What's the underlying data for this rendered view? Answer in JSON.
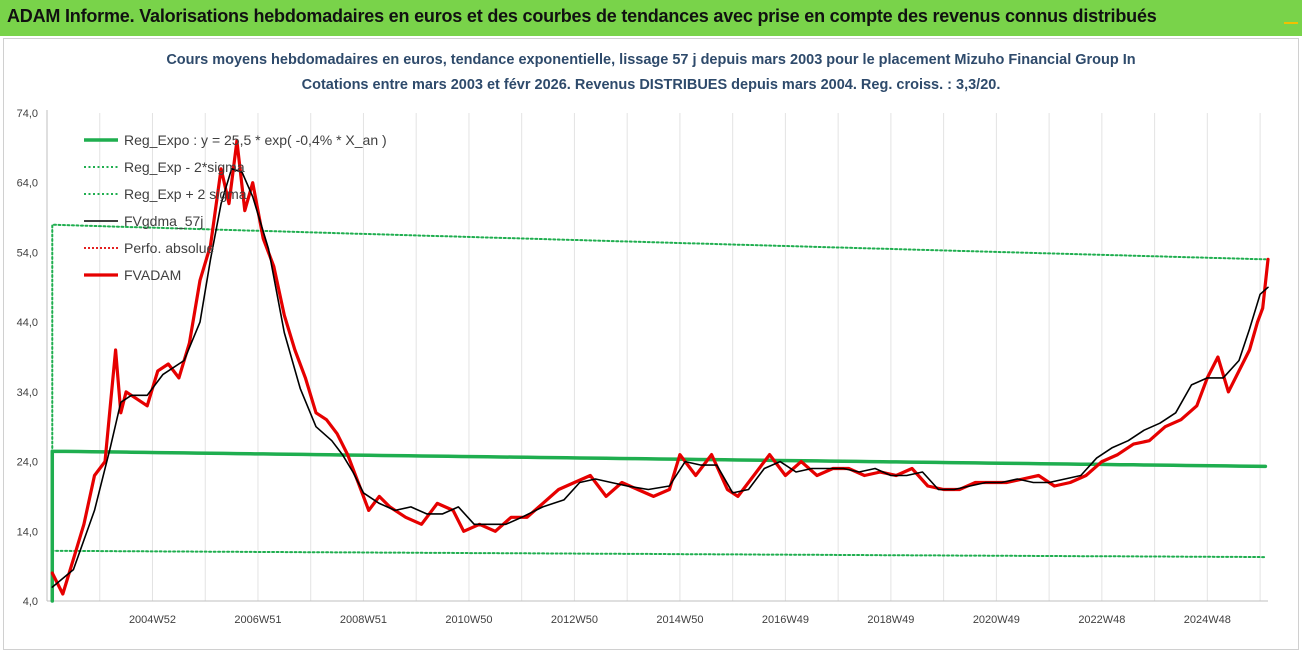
{
  "banner": {
    "title": "ADAM Informe. Valorisations hebdomadaires en euros et des courbes de tendances avec prise en compte des revenus connus distribués"
  },
  "colors": {
    "banner_bg": "#79d34a",
    "reg_expo": "#1fae4f",
    "sigma_bands": "#1fae4f",
    "fvgdma": "#000000",
    "perfo": "#e00000",
    "fvadam": "#e60000"
  },
  "chart_data": {
    "type": "line",
    "title": "Cours moyens hebdomadaires en euros, tendance exponentielle, lissage 57 j depuis mars 2003 pour le placement Mizuho Financial Group In",
    "subtitle": "Cotations entre mars 2003 et févr 2026. Revenus DISTRIBUES depuis mars 2004. Reg. croiss. : 3,3/20.",
    "xlabel": "",
    "ylabel": "",
    "ylim": [
      4,
      74
    ],
    "xlim": [
      2003.0,
      2026.15
    ],
    "y_ticks": [
      "4,0",
      "14,0",
      "24,0",
      "34,0",
      "44,0",
      "54,0",
      "64,0",
      "74,0"
    ],
    "x_ticks": [
      {
        "label": "2004W52",
        "x": 2005.0
      },
      {
        "label": "2006W51",
        "x": 2007.0
      },
      {
        "label": "2008W51",
        "x": 2009.0
      },
      {
        "label": "2010W50",
        "x": 2011.0
      },
      {
        "label": "2012W50",
        "x": 2013.0
      },
      {
        "label": "2014W50",
        "x": 2015.0
      },
      {
        "label": "2016W49",
        "x": 2017.0
      },
      {
        "label": "2018W49",
        "x": 2019.0
      },
      {
        "label": "2020W49",
        "x": 2021.0
      },
      {
        "label": "2022W48",
        "x": 2023.0
      },
      {
        "label": "2024W48",
        "x": 2025.0
      }
    ],
    "grid": "vertical",
    "legend_position": "top-left",
    "series": [
      {
        "name": "Reg_Expo : y = 25,5 * exp( -0,4% *  X_an )",
        "style": "solid-thick",
        "x": [
          2003.0,
          2026.15
        ],
        "y": [
          25.5,
          23.3
        ]
      },
      {
        "name": "Reg_Exp - 2*sigma",
        "style": "dotted",
        "x": [
          2003.0,
          2026.15
        ],
        "y": [
          11.2,
          10.3
        ]
      },
      {
        "name": "Reg_Exp + 2 sigma",
        "style": "dotted",
        "x": [
          2003.0,
          2026.15
        ],
        "y": [
          58.0,
          53.0
        ]
      },
      {
        "name": "FVgdma_57j",
        "style": "solid-thin",
        "x": [
          2003.1,
          2003.5,
          2003.9,
          2004.2,
          2004.4,
          2004.6,
          2004.9,
          2005.2,
          2005.6,
          2005.9,
          2006.1,
          2006.3,
          2006.5,
          2006.7,
          2006.9,
          2007.2,
          2007.5,
          2007.8,
          2008.1,
          2008.4,
          2008.6,
          2008.8,
          2009.0,
          2009.3,
          2009.6,
          2009.9,
          2010.2,
          2010.5,
          2010.8,
          2011.1,
          2011.4,
          2011.7,
          2012.0,
          2012.4,
          2012.8,
          2013.1,
          2013.4,
          2013.7,
          2014.0,
          2014.4,
          2014.8,
          2015.1,
          2015.4,
          2015.7,
          2016.0,
          2016.3,
          2016.6,
          2016.9,
          2017.2,
          2017.5,
          2017.8,
          2018.1,
          2018.4,
          2018.7,
          2019.0,
          2019.3,
          2019.6,
          2019.9,
          2020.2,
          2020.5,
          2020.8,
          2021.1,
          2021.4,
          2021.7,
          2022.0,
          2022.3,
          2022.6,
          2022.9,
          2023.2,
          2023.5,
          2023.8,
          2024.1,
          2024.4,
          2024.7,
          2025.0,
          2025.3,
          2025.6,
          2025.8,
          2026.0,
          2026.15
        ],
        "y": [
          6.0,
          8.5,
          17.0,
          26.0,
          32.5,
          33.5,
          33.5,
          36.5,
          38.5,
          44.0,
          53.0,
          61.0,
          66.0,
          65.5,
          62.0,
          54.5,
          42.5,
          34.5,
          29.0,
          27.0,
          25.0,
          22.5,
          19.5,
          18.0,
          17.0,
          17.5,
          16.5,
          16.5,
          17.5,
          15.0,
          15.0,
          15.0,
          16.0,
          17.5,
          18.5,
          21.0,
          21.5,
          21.0,
          20.5,
          20.0,
          20.5,
          24.0,
          23.5,
          23.5,
          19.5,
          20.0,
          23.0,
          24.0,
          22.5,
          23.0,
          23.0,
          23.0,
          22.5,
          23.0,
          22.0,
          22.0,
          22.5,
          20.0,
          20.0,
          20.5,
          21.0,
          21.0,
          21.5,
          21.0,
          21.0,
          21.5,
          22.0,
          24.5,
          26.0,
          27.0,
          28.5,
          29.5,
          31.0,
          35.0,
          36.0,
          36.0,
          38.5,
          43.0,
          48.0,
          49.0
        ]
      },
      {
        "name": "Perfo. absolue",
        "style": "dotted",
        "x": [],
        "y": []
      },
      {
        "name": "FVADAM",
        "style": "solid-thick",
        "x": [
          2003.1,
          2003.3,
          2003.5,
          2003.7,
          2003.9,
          2004.1,
          2004.3,
          2004.4,
          2004.5,
          2004.7,
          2004.9,
          2005.1,
          2005.3,
          2005.5,
          2005.7,
          2005.9,
          2006.1,
          2006.3,
          2006.45,
          2006.6,
          2006.75,
          2006.9,
          2007.1,
          2007.3,
          2007.5,
          2007.7,
          2007.9,
          2008.1,
          2008.3,
          2008.5,
          2008.7,
          2008.9,
          2009.1,
          2009.3,
          2009.5,
          2009.8,
          2010.1,
          2010.4,
          2010.7,
          2010.9,
          2011.2,
          2011.5,
          2011.8,
          2012.1,
          2012.4,
          2012.7,
          2013.0,
          2013.3,
          2013.6,
          2013.9,
          2014.2,
          2014.5,
          2014.8,
          2015.0,
          2015.3,
          2015.6,
          2015.9,
          2016.1,
          2016.4,
          2016.7,
          2017.0,
          2017.3,
          2017.6,
          2017.9,
          2018.2,
          2018.5,
          2018.8,
          2019.1,
          2019.4,
          2019.7,
          2020.0,
          2020.3,
          2020.6,
          2020.9,
          2021.2,
          2021.5,
          2021.8,
          2022.1,
          2022.4,
          2022.7,
          2023.0,
          2023.3,
          2023.6,
          2023.9,
          2024.2,
          2024.5,
          2024.8,
          2025.0,
          2025.2,
          2025.4,
          2025.6,
          2025.8,
          2025.95,
          2026.05,
          2026.15
        ],
        "y": [
          8.0,
          5.0,
          10.0,
          15.0,
          22.0,
          24.0,
          40.0,
          31.0,
          34.0,
          33.0,
          32.0,
          37.0,
          38.0,
          36.0,
          41.0,
          50.0,
          55.0,
          66.0,
          61.0,
          70.0,
          60.0,
          64.0,
          56.0,
          52.0,
          45.0,
          40.0,
          36.0,
          31.0,
          30.0,
          28.0,
          25.0,
          21.0,
          17.0,
          19.0,
          17.5,
          16.0,
          15.0,
          18.0,
          17.0,
          14.0,
          15.0,
          14.0,
          16.0,
          16.0,
          18.0,
          20.0,
          21.0,
          22.0,
          19.0,
          21.0,
          20.0,
          19.0,
          20.0,
          25.0,
          22.0,
          25.0,
          20.0,
          19.0,
          22.0,
          25.0,
          22.0,
          24.0,
          22.0,
          23.0,
          23.0,
          22.0,
          22.5,
          22.0,
          23.0,
          20.5,
          20.0,
          20.0,
          21.0,
          21.0,
          21.0,
          21.5,
          22.0,
          20.5,
          21.0,
          22.0,
          24.0,
          25.0,
          26.5,
          27.0,
          29.0,
          30.0,
          32.0,
          36.0,
          39.0,
          34.0,
          37.0,
          40.0,
          44.0,
          46.0,
          53.0
        ]
      }
    ]
  }
}
